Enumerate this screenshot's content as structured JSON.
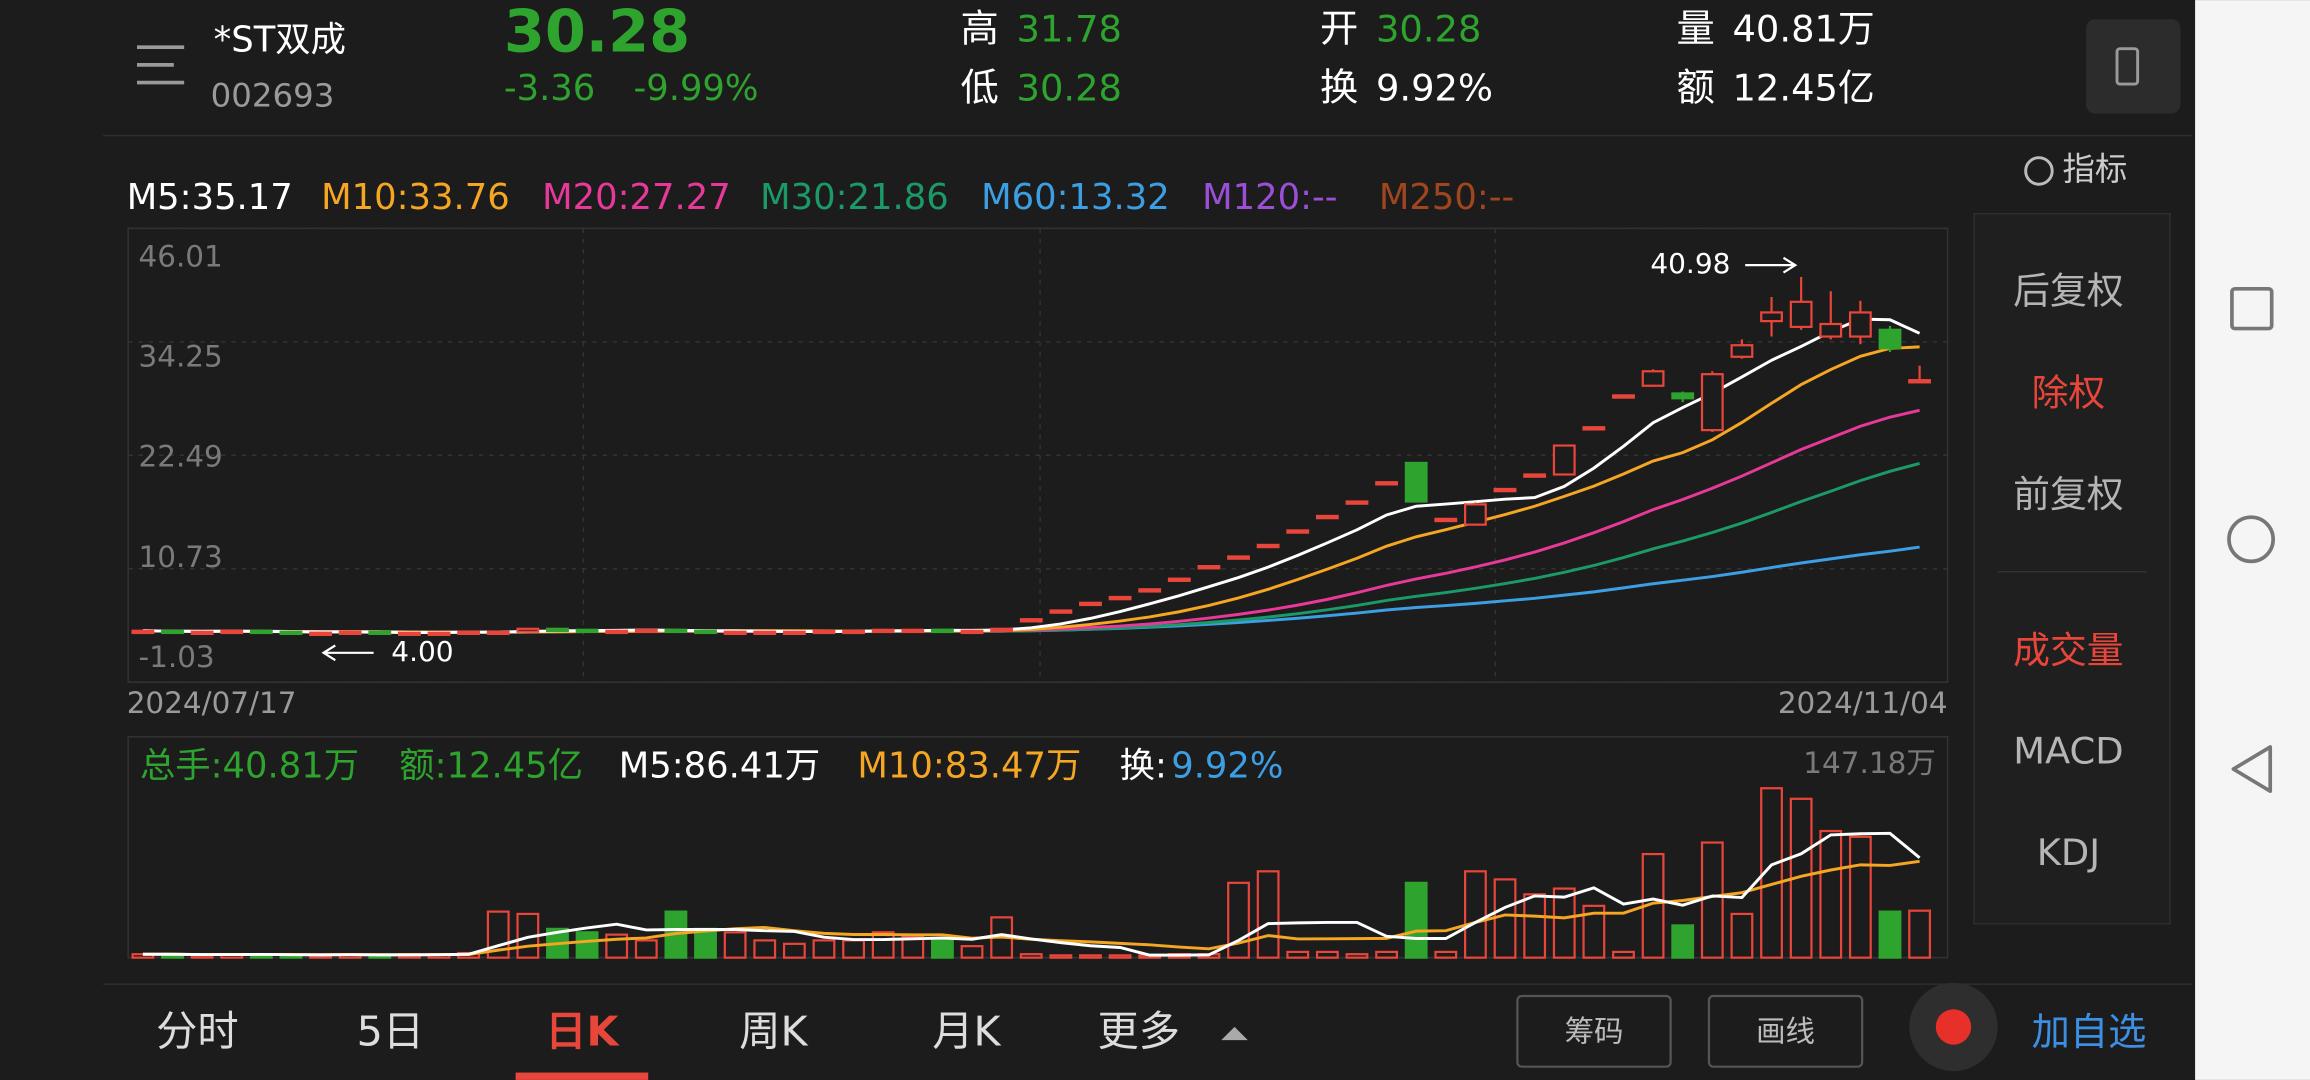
{
  "header": {
    "name": "*ST双成",
    "code": "002693",
    "price": "30.28",
    "change": "-3.36",
    "change_pct": "-9.99%",
    "stats": [
      {
        "label": "高",
        "value": "31.78",
        "color": "#2ea32e"
      },
      {
        "label": "低",
        "value": "30.28",
        "color": "#2ea32e"
      },
      {
        "label": "开",
        "value": "30.28",
        "color": "#2ea32e"
      },
      {
        "label": "换",
        "value": "9.92%",
        "color": "#ffffff"
      },
      {
        "label": "量",
        "value": "40.81万",
        "color": "#ffffff"
      },
      {
        "label": "额",
        "value": "12.45亿",
        "color": "#ffffff"
      }
    ]
  },
  "ma_legend": [
    {
      "text": "M5:35.17",
      "color": "#ffffff"
    },
    {
      "text": "M10:33.76",
      "color": "#f5a623"
    },
    {
      "text": "M20:27.27",
      "color": "#e8399a"
    },
    {
      "text": "M30:21.86",
      "color": "#1b9a68"
    },
    {
      "text": "M60:13.32",
      "color": "#3d9fe3"
    },
    {
      "text": "M120:--",
      "color": "#9b4fd6"
    },
    {
      "text": "M250:--",
      "color": "#a0461e"
    }
  ],
  "indicator_button": "指标",
  "chart_data": {
    "type": "candlestick",
    "x_start": "2024/07/17",
    "x_end": "2024/11/04",
    "ylim": [
      -1.03,
      46.01
    ],
    "yticks": [
      46.01,
      34.25,
      22.49,
      10.73,
      -1.03
    ],
    "grid": true,
    "up_color": "#e8463a",
    "down_color": "#2ea32e",
    "open": [
      4.2,
      4.3,
      4.2,
      4.2,
      4.3,
      4.2,
      4.1,
      4.1,
      4.2,
      4.1,
      4.1,
      4.1,
      4.2,
      4.2,
      4.5,
      4.4,
      4.3,
      4.3,
      4.4,
      4.3,
      4.2,
      4.2,
      4.2,
      4.2,
      4.3,
      4.3,
      4.4,
      4.4,
      4.3,
      4.3,
      5.4,
      6.3,
      7.1,
      7.7,
      8.5,
      9.6,
      10.9,
      11.9,
      13.1,
      14.6,
      16.1,
      17.6,
      19.6,
      21.7,
      15.9,
      15.3,
      18.8,
      20.3,
      20.5,
      25.2,
      28.5,
      29.7,
      28.9,
      25.1,
      32.7,
      36.4,
      35.8,
      34.8,
      34.8,
      35.5,
      30.28
    ],
    "high": [
      4.4,
      4.4,
      4.3,
      4.4,
      4.4,
      4.3,
      4.2,
      4.3,
      4.3,
      4.2,
      4.2,
      4.3,
      4.3,
      4.6,
      4.6,
      4.5,
      4.4,
      4.5,
      4.5,
      4.4,
      4.3,
      4.3,
      4.3,
      4.4,
      4.4,
      4.5,
      4.5,
      4.5,
      4.4,
      4.6,
      5.5,
      6.4,
      7.2,
      7.8,
      8.6,
      9.7,
      11.0,
      12.0,
      13.2,
      14.7,
      16.2,
      17.7,
      19.7,
      21.7,
      16.0,
      17.6,
      19.1,
      20.6,
      23.6,
      25.5,
      28.8,
      31.4,
      29.1,
      31.2,
      34.5,
      38.9,
      40.98,
      39.5,
      38.5,
      35.9,
      31.78
    ],
    "low": [
      4.1,
      4.1,
      4.1,
      4.1,
      4.1,
      4.05,
      4.0,
      4.05,
      4.05,
      4.05,
      4.05,
      4.05,
      4.1,
      4.1,
      4.3,
      4.2,
      4.2,
      4.2,
      4.2,
      4.1,
      4.1,
      4.1,
      4.1,
      4.1,
      4.2,
      4.2,
      4.3,
      4.2,
      4.2,
      4.2,
      5.3,
      6.2,
      7.0,
      7.6,
      8.4,
      9.5,
      10.8,
      11.8,
      13.0,
      14.5,
      16.0,
      17.5,
      19.5,
      17.7,
      15.8,
      15.2,
      18.7,
      20.2,
      20.4,
      25.1,
      28.4,
      29.6,
      28.0,
      24.9,
      32.5,
      34.8,
      35.5,
      34.5,
      34.0,
      33.2,
      30.28
    ],
    "close": [
      4.3,
      4.2,
      4.2,
      4.3,
      4.2,
      4.1,
      4.1,
      4.2,
      4.1,
      4.1,
      4.1,
      4.2,
      4.2,
      4.5,
      4.4,
      4.3,
      4.3,
      4.4,
      4.3,
      4.2,
      4.2,
      4.2,
      4.2,
      4.3,
      4.3,
      4.4,
      4.4,
      4.3,
      4.3,
      4.5,
      5.5,
      6.4,
      7.2,
      7.8,
      8.6,
      9.7,
      11.0,
      12.0,
      13.2,
      14.7,
      16.2,
      17.7,
      19.7,
      17.7,
      15.9,
      17.4,
      19.0,
      20.5,
      23.5,
      25.4,
      28.7,
      31.2,
      28.4,
      30.9,
      33.9,
      37.3,
      38.4,
      36.1,
      37.3,
      33.6,
      30.28
    ],
    "max_marker": 40.98,
    "min_marker": {
      "value": 4,
      "label": "4.00"
    }
  },
  "volume_chart": {
    "type": "bar",
    "ylim": [
      0,
      147.18
    ],
    "yticks": [
      {
        "value": 147.18,
        "label": "147.18万"
      }
    ],
    "values": [
      3,
      3,
      2,
      3,
      3,
      2,
      2,
      3,
      2,
      3,
      3,
      4,
      40,
      38,
      25,
      22,
      20,
      15,
      40,
      25,
      22,
      15,
      12,
      15,
      15,
      22,
      18,
      15,
      10,
      35,
      3,
      2,
      2,
      2,
      2,
      3,
      3,
      65,
      75,
      5,
      5,
      3,
      5,
      65,
      5,
      75,
      68,
      55,
      60,
      45,
      5,
      90,
      28,
      100,
      38,
      147.18,
      138,
      110,
      105,
      40,
      40.81
    ],
    "legend": [
      {
        "text": "总手:40.81万",
        "color": "#2ea32e"
      },
      {
        "text": "额:12.45亿",
        "color": "#2ea32e"
      },
      {
        "text": "M5:86.41万",
        "color": "#ffffff"
      },
      {
        "text": "M10:83.47万",
        "color": "#f5a623"
      },
      {
        "text": "换:",
        "color": "#ffffff"
      },
      {
        "text": "9.92%",
        "color": "#3d9fe3"
      }
    ]
  },
  "side_panel": [
    {
      "text": "后复权",
      "color": "#b5b5b5"
    },
    {
      "text": "除权",
      "color": "#e8463a"
    },
    {
      "text": "前复权",
      "color": "#b5b5b5"
    },
    {
      "text": "成交量",
      "color": "#e8463a"
    },
    {
      "text": "MACD",
      "color": "#b5b5b5"
    },
    {
      "text": "KDJ",
      "color": "#b5b5b5"
    }
  ],
  "tabs": [
    {
      "text": "分时",
      "active": false
    },
    {
      "text": "5日",
      "active": false
    },
    {
      "text": "日K",
      "active": true
    },
    {
      "text": "周K",
      "active": false
    },
    {
      "text": "月K",
      "active": false
    },
    {
      "text": "更多",
      "active": false
    }
  ],
  "buttons": [
    "筹码",
    "画线"
  ],
  "add_watchlist": "加自选"
}
